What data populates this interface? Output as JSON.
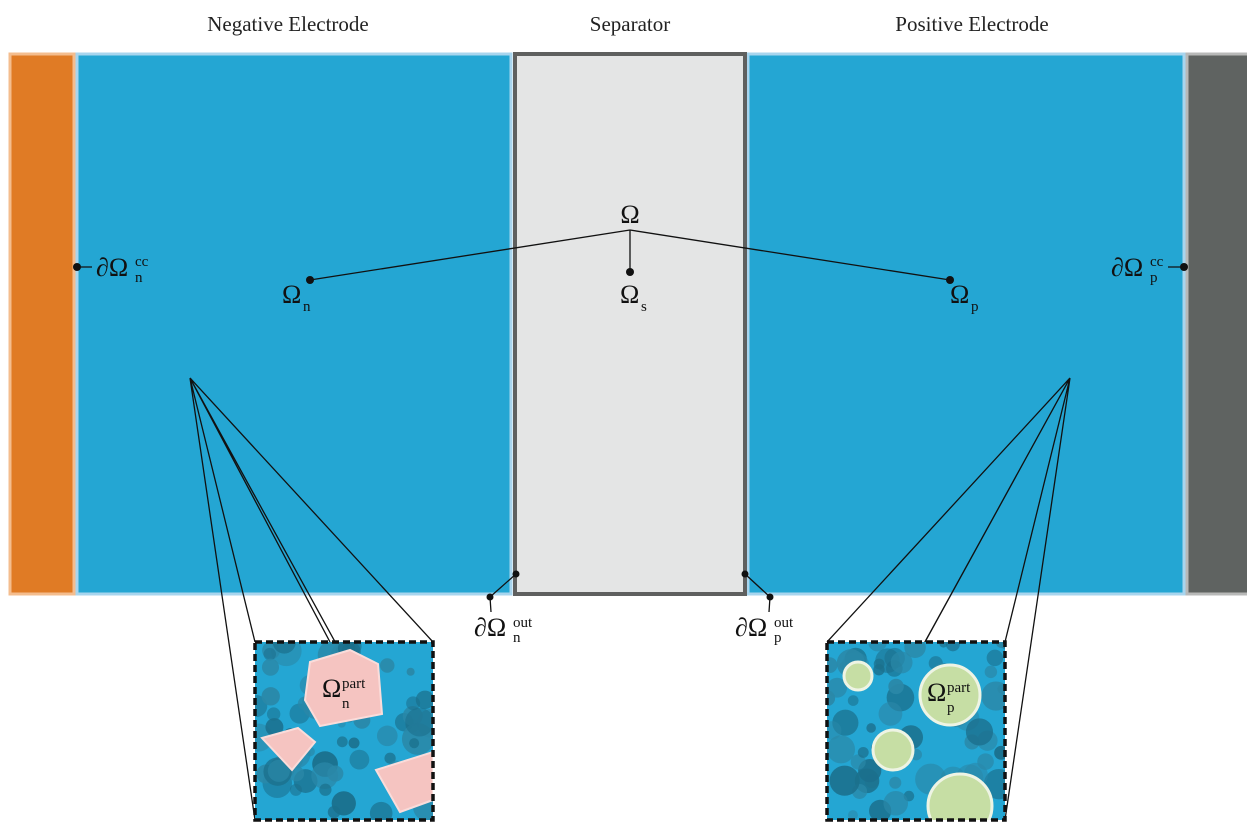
{
  "headers": [
    "Negative Electrode",
    "Separator",
    "Positive Electrode"
  ],
  "labels": [
    {
      "base": "Ω"
    },
    {
      "base": "Ω",
      "sub": "n"
    },
    {
      "base": "Ω",
      "sub": "s"
    },
    {
      "base": "Ω",
      "sub": "p"
    },
    {
      "base": "∂Ω",
      "sub": "n",
      "sup": "cc"
    },
    {
      "base": "∂Ω",
      "sub": "p",
      "sup": "cc"
    },
    {
      "base": "∂Ω",
      "sub": "n",
      "sup": "out"
    },
    {
      "base": "∂Ω",
      "sub": "p",
      "sup": "out"
    },
    {
      "base": "Ω",
      "sub": "n",
      "sup": "part"
    },
    {
      "base": "Ω",
      "sub": "p",
      "sup": "part"
    }
  ]
}
